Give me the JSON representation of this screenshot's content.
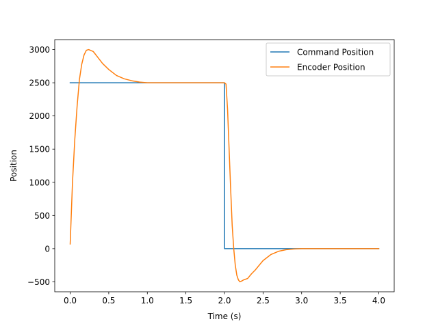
{
  "chart_data": {
    "type": "line",
    "title": "",
    "xlabel": "Time (s)",
    "ylabel": "Position",
    "xlim": [
      -0.2,
      4.2
    ],
    "ylim": [
      -650,
      3150
    ],
    "xticks": [
      0.0,
      0.5,
      1.0,
      1.5,
      2.0,
      2.5,
      3.0,
      3.5,
      4.0
    ],
    "xtick_labels": [
      "0.0",
      "0.5",
      "1.0",
      "1.5",
      "2.0",
      "2.5",
      "3.0",
      "3.5",
      "4.0"
    ],
    "yticks": [
      -500,
      0,
      500,
      1000,
      1500,
      2000,
      2500,
      3000
    ],
    "ytick_labels": [
      "−500",
      "0",
      "500",
      "1000",
      "1500",
      "2000",
      "2500",
      "3000"
    ],
    "grid": false,
    "legend_position": "top-right",
    "series": [
      {
        "name": "Command Position",
        "color": "#1f77b4",
        "x": [
          0.0,
          2.0,
          2.0,
          4.0
        ],
        "y": [
          2500,
          2500,
          0,
          0
        ]
      },
      {
        "name": "Encoder Position",
        "color": "#ff7f0e",
        "x": [
          0.0,
          0.03,
          0.06,
          0.09,
          0.12,
          0.15,
          0.18,
          0.21,
          0.24,
          0.3,
          0.36,
          0.42,
          0.5,
          0.6,
          0.7,
          0.8,
          0.9,
          1.0,
          1.2,
          1.5,
          1.8,
          2.0,
          2.02,
          2.04,
          2.06,
          2.08,
          2.1,
          2.12,
          2.14,
          2.16,
          2.18,
          2.2,
          2.22,
          2.25,
          2.3,
          2.35,
          2.4,
          2.5,
          2.6,
          2.7,
          2.8,
          2.9,
          3.0,
          3.2,
          3.5,
          4.0
        ],
        "y": [
          70,
          1000,
          1650,
          2150,
          2550,
          2780,
          2920,
          2990,
          3000,
          2970,
          2880,
          2790,
          2700,
          2610,
          2560,
          2530,
          2510,
          2500,
          2500,
          2500,
          2500,
          2500,
          2480,
          2100,
          1500,
          900,
          350,
          0,
          -250,
          -400,
          -470,
          -500,
          -490,
          -470,
          -450,
          -380,
          -320,
          -180,
          -90,
          -40,
          -15,
          -5,
          0,
          0,
          0,
          0
        ]
      }
    ]
  }
}
